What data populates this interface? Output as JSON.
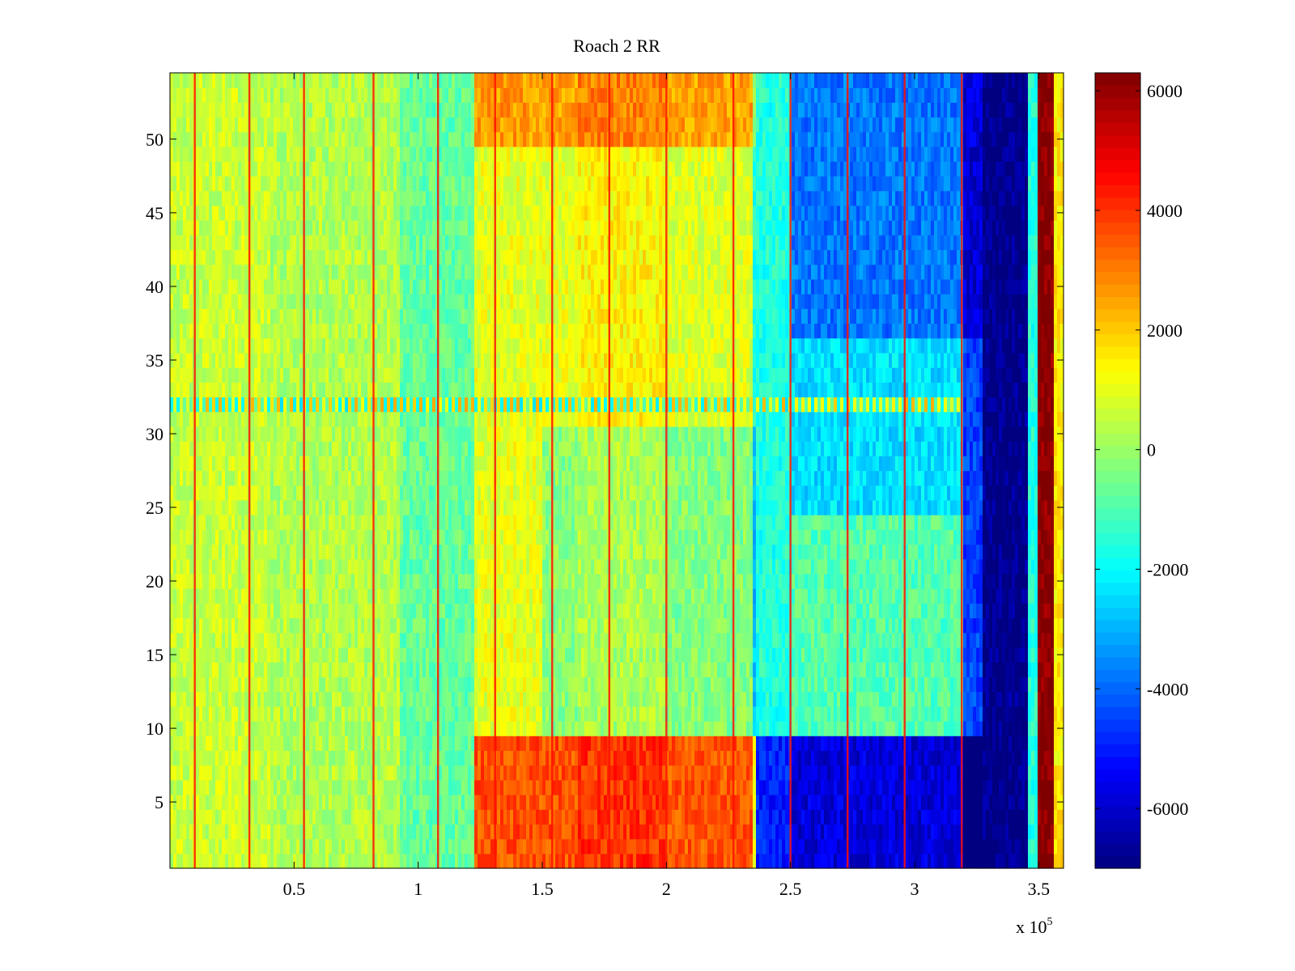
{
  "chart_data": {
    "type": "heatmap",
    "title": "Roach 2 RR",
    "xlabel": "",
    "ylabel": "",
    "xlim": [
      0,
      360000
    ],
    "ylim": [
      0.5,
      54.5
    ],
    "x_exponent_label": "x 10",
    "x_exponent_power": "5",
    "x_ticks": [
      {
        "value": 50000,
        "label": "0.5"
      },
      {
        "value": 100000,
        "label": "1"
      },
      {
        "value": 150000,
        "label": "1.5"
      },
      {
        "value": 200000,
        "label": "2"
      },
      {
        "value": 250000,
        "label": "2.5"
      },
      {
        "value": 300000,
        "label": "3"
      },
      {
        "value": 350000,
        "label": "3.5"
      }
    ],
    "y_ticks": [
      {
        "value": 5,
        "label": "5"
      },
      {
        "value": 10,
        "label": "10"
      },
      {
        "value": 15,
        "label": "15"
      },
      {
        "value": 20,
        "label": "20"
      },
      {
        "value": 25,
        "label": "25"
      },
      {
        "value": 30,
        "label": "30"
      },
      {
        "value": 35,
        "label": "35"
      },
      {
        "value": 40,
        "label": "40"
      },
      {
        "value": 45,
        "label": "45"
      },
      {
        "value": 50,
        "label": "50"
      }
    ],
    "colormap": "jet",
    "clim": [
      -7000,
      6300
    ],
    "colorbar_ticks": [
      {
        "value": 6000,
        "label": "6000"
      },
      {
        "value": 4000,
        "label": "4000"
      },
      {
        "value": 2000,
        "label": "2000"
      },
      {
        "value": 0,
        "label": "0"
      },
      {
        "value": -2000,
        "label": "-2000"
      },
      {
        "value": -4000,
        "label": "-4000"
      },
      {
        "value": -6000,
        "label": "-6000"
      }
    ],
    "rows": 54,
    "column_regions": [
      {
        "x_start": 0,
        "x_end": 40000,
        "base": 600
      },
      {
        "x_start": 40000,
        "x_end": 92000,
        "base": 300
      },
      {
        "x_start": 92000,
        "x_end": 123000,
        "base": -700
      },
      {
        "x_start": 123000,
        "x_end": 165000,
        "base": 1000
      },
      {
        "x_start": 165000,
        "x_end": 200000,
        "base": 1400
      },
      {
        "x_start": 200000,
        "x_end": 235000,
        "base": 900
      },
      {
        "x_start": 235000,
        "x_end": 250000,
        "base": -1600
      },
      {
        "x_start": 250000,
        "x_end": 320000,
        "base": -2400
      },
      {
        "x_start": 320000,
        "x_end": 328000,
        "base": -4500
      },
      {
        "x_start": 328000,
        "x_end": 346000,
        "base": -6900
      },
      {
        "x_start": 346000,
        "x_end": 350000,
        "base": -1600
      },
      {
        "x_start": 350000,
        "x_end": 356000,
        "base": 6300
      },
      {
        "x_start": 356000,
        "x_end": 360000,
        "base": 1500
      }
    ],
    "row_bands": [
      {
        "y_start": 0.5,
        "y_end": 9.5,
        "x_start": 123000,
        "x_end": 236000,
        "delta": 2600
      },
      {
        "y_start": 0.5,
        "y_end": 9.5,
        "x_start": 236000,
        "x_end": 328000,
        "delta": -3400
      },
      {
        "y_start": 49.5,
        "y_end": 54.5,
        "x_start": 123000,
        "x_end": 236000,
        "delta": 1600
      },
      {
        "y_start": 36.5,
        "y_end": 54.5,
        "x_start": 250000,
        "x_end": 328000,
        "delta": -1400
      },
      {
        "y_start": 9.5,
        "y_end": 24.5,
        "x_start": 250000,
        "x_end": 320000,
        "delta": 1500
      },
      {
        "y_start": 9.5,
        "y_end": 30.5,
        "x_start": 150000,
        "x_end": 236000,
        "delta": -1200
      }
    ],
    "stripe_row": {
      "row": 32,
      "pattern": "alternating"
    },
    "vertical_lines_x": [
      10000,
      32000,
      54000,
      82000,
      108000,
      131000,
      154000,
      177000,
      200000,
      227000,
      250000,
      273000,
      296000,
      319000
    ]
  }
}
